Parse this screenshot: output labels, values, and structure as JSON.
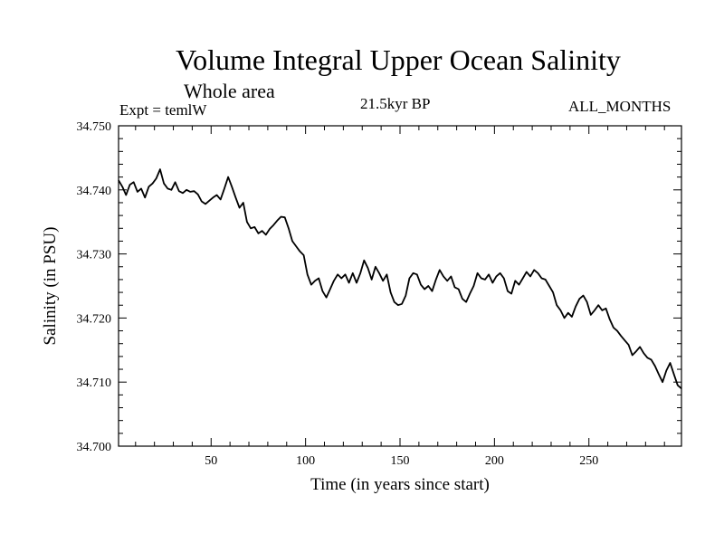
{
  "chart_data": {
    "type": "line",
    "title": "Volume Integral Upper Ocean Salinity",
    "subtitle": "Whole area",
    "experiment": "Expt = temlW",
    "period": "21.5kyr BP",
    "months": "ALL_MONTHS",
    "xlabel": "Time (in years since start)",
    "ylabel": "Salinity (in PSU)",
    "xlim": [
      1,
      299
    ],
    "ylim": [
      34.7,
      34.75
    ],
    "xticks": [
      50,
      100,
      150,
      200,
      250
    ],
    "yticks": [
      34.7,
      34.71,
      34.72,
      34.73,
      34.74,
      34.75
    ],
    "ytick_labels": [
      "34.700",
      "34.710",
      "34.720",
      "34.730",
      "34.740",
      "34.750"
    ],
    "grid": false,
    "series": [
      {
        "name": "Salinity",
        "points": [
          [
            1,
            34.7415
          ],
          [
            3,
            34.7405
          ],
          [
            5,
            34.7392
          ],
          [
            7,
            34.7408
          ],
          [
            9,
            34.7412
          ],
          [
            11,
            34.7397
          ],
          [
            13,
            34.7402
          ],
          [
            15,
            34.7388
          ],
          [
            17,
            34.7405
          ],
          [
            19,
            34.741
          ],
          [
            21,
            34.7418
          ],
          [
            23,
            34.7432
          ],
          [
            25,
            34.741
          ],
          [
            27,
            34.7402
          ],
          [
            29,
            34.74
          ],
          [
            31,
            34.7412
          ],
          [
            33,
            34.7398
          ],
          [
            35,
            34.7395
          ],
          [
            37,
            34.74
          ],
          [
            39,
            34.7397
          ],
          [
            41,
            34.7398
          ],
          [
            43,
            34.7393
          ],
          [
            45,
            34.7382
          ],
          [
            47,
            34.7378
          ],
          [
            49,
            34.7383
          ],
          [
            51,
            34.7388
          ],
          [
            53,
            34.7392
          ],
          [
            55,
            34.7385
          ],
          [
            57,
            34.7402
          ],
          [
            59,
            34.742
          ],
          [
            61,
            34.7405
          ],
          [
            63,
            34.7388
          ],
          [
            65,
            34.7372
          ],
          [
            67,
            34.738
          ],
          [
            69,
            34.735
          ],
          [
            71,
            34.734
          ],
          [
            73,
            34.7342
          ],
          [
            75,
            34.7332
          ],
          [
            77,
            34.7336
          ],
          [
            79,
            34.733
          ],
          [
            81,
            34.7339
          ],
          [
            83,
            34.7345
          ],
          [
            85,
            34.7352
          ],
          [
            87,
            34.7358
          ],
          [
            89,
            34.7357
          ],
          [
            91,
            34.734
          ],
          [
            93,
            34.732
          ],
          [
            95,
            34.7312
          ],
          [
            97,
            34.7304
          ],
          [
            99,
            34.7298
          ],
          [
            101,
            34.7268
          ],
          [
            103,
            34.7252
          ],
          [
            105,
            34.7258
          ],
          [
            107,
            34.7262
          ],
          [
            109,
            34.7242
          ],
          [
            111,
            34.7232
          ],
          [
            113,
            34.7245
          ],
          [
            115,
            34.7258
          ],
          [
            117,
            34.7268
          ],
          [
            119,
            34.7262
          ],
          [
            121,
            34.7268
          ],
          [
            123,
            34.7255
          ],
          [
            125,
            34.727
          ],
          [
            127,
            34.7255
          ],
          [
            129,
            34.727
          ],
          [
            131,
            34.729
          ],
          [
            133,
            34.7278
          ],
          [
            135,
            34.726
          ],
          [
            137,
            34.728
          ],
          [
            139,
            34.727
          ],
          [
            141,
            34.7258
          ],
          [
            143,
            34.7268
          ],
          [
            145,
            34.724
          ],
          [
            147,
            34.7225
          ],
          [
            149,
            34.722
          ],
          [
            151,
            34.7222
          ],
          [
            153,
            34.7235
          ],
          [
            155,
            34.7262
          ],
          [
            157,
            34.727
          ],
          [
            159,
            34.7268
          ],
          [
            161,
            34.7252
          ],
          [
            163,
            34.7245
          ],
          [
            165,
            34.725
          ],
          [
            167,
            34.7242
          ],
          [
            169,
            34.726
          ],
          [
            171,
            34.7275
          ],
          [
            173,
            34.7265
          ],
          [
            175,
            34.7258
          ],
          [
            177,
            34.7265
          ],
          [
            179,
            34.7248
          ],
          [
            181,
            34.7245
          ],
          [
            183,
            34.723
          ],
          [
            185,
            34.7225
          ],
          [
            187,
            34.7238
          ],
          [
            189,
            34.725
          ],
          [
            191,
            34.727
          ],
          [
            193,
            34.7262
          ],
          [
            195,
            34.726
          ],
          [
            197,
            34.7268
          ],
          [
            199,
            34.7255
          ],
          [
            201,
            34.7265
          ],
          [
            203,
            34.727
          ],
          [
            205,
            34.7262
          ],
          [
            207,
            34.7242
          ],
          [
            209,
            34.7238
          ],
          [
            211,
            34.7258
          ],
          [
            213,
            34.7252
          ],
          [
            215,
            34.7262
          ],
          [
            217,
            34.7272
          ],
          [
            219,
            34.7265
          ],
          [
            221,
            34.7275
          ],
          [
            223,
            34.727
          ],
          [
            225,
            34.7262
          ],
          [
            227,
            34.726
          ],
          [
            229,
            34.725
          ],
          [
            231,
            34.724
          ],
          [
            233,
            34.722
          ],
          [
            235,
            34.7212
          ],
          [
            237,
            34.72
          ],
          [
            239,
            34.7208
          ],
          [
            241,
            34.7202
          ],
          [
            243,
            34.7218
          ],
          [
            245,
            34.723
          ],
          [
            247,
            34.7235
          ],
          [
            249,
            34.7225
          ],
          [
            251,
            34.7205
          ],
          [
            253,
            34.7212
          ],
          [
            255,
            34.722
          ],
          [
            257,
            34.7212
          ],
          [
            259,
            34.7215
          ],
          [
            261,
            34.7198
          ],
          [
            263,
            34.7185
          ],
          [
            265,
            34.718
          ],
          [
            267,
            34.7172
          ],
          [
            269,
            34.7165
          ],
          [
            271,
            34.7158
          ],
          [
            273,
            34.7142
          ],
          [
            275,
            34.7148
          ],
          [
            277,
            34.7155
          ],
          [
            279,
            34.7145
          ],
          [
            281,
            34.7138
          ],
          [
            283,
            34.7135
          ],
          [
            285,
            34.7125
          ],
          [
            287,
            34.7112
          ],
          [
            289,
            34.71
          ],
          [
            291,
            34.7118
          ],
          [
            293,
            34.713
          ],
          [
            295,
            34.7112
          ],
          [
            297,
            34.7095
          ],
          [
            299,
            34.709
          ]
        ]
      }
    ]
  }
}
